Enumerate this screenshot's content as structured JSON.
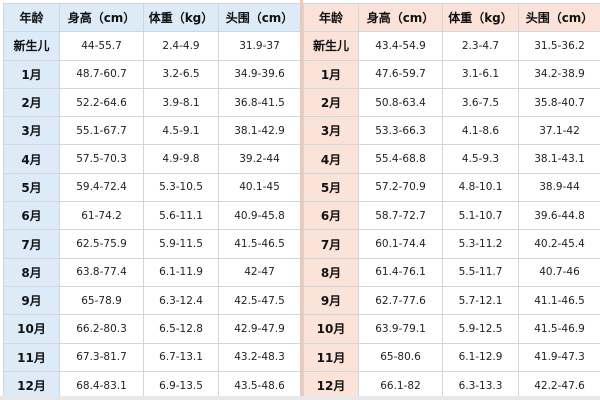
{
  "left_table": {
    "headers": [
      "年龄",
      "身高（cm）",
      "体重（kg）",
      "头围（cm）"
    ],
    "rows": [
      [
        "新生儿",
        "44-55.7",
        "2.4-4.9",
        "31.9-37"
      ],
      [
        "1月",
        "48.7-60.7",
        "3.2-6.5",
        "34.9-39.6"
      ],
      [
        "2月",
        "52.2-64.6",
        "3.9-8.1",
        "36.8-41.5"
      ],
      [
        "3月",
        "55.1-67.7",
        "4.5-9.1",
        "38.1-42.9"
      ],
      [
        "4月",
        "57.5-70.3",
        "4.9-9.8",
        "39.2-44"
      ],
      [
        "5月",
        "59.4-72.4",
        "5.3-10.5",
        "40.1-45"
      ],
      [
        "6月",
        "61-74.2",
        "5.6-11.1",
        "40.9-45.8"
      ],
      [
        "7月",
        "62.5-75.9",
        "5.9-11.5",
        "41.5-46.5"
      ],
      [
        "8月",
        "63.8-77.4",
        "6.1-11.9",
        "42-47"
      ],
      [
        "9月",
        "65-78.9",
        "6.3-12.4",
        "42.5-47.5"
      ],
      [
        "10月",
        "66.2-80.3",
        "6.5-12.8",
        "42.9-47.9"
      ],
      [
        "11月",
        "67.3-81.7",
        "6.7-13.1",
        "43.2-48.3"
      ],
      [
        "12月",
        "68.4-83.1",
        "6.9-13.5",
        "43.5-48.6"
      ]
    ]
  },
  "right_table": {
    "headers": [
      "年龄",
      "身高（cm）",
      "体重（kg）",
      "头围（cm）"
    ],
    "rows": [
      [
        "新生儿",
        "43.4-54.9",
        "2.3-4.7",
        "31.5-36.2"
      ],
      [
        "1月",
        "47.6-59.7",
        "3.1-6.1",
        "34.2-38.9"
      ],
      [
        "2月",
        "50.8-63.4",
        "3.6-7.5",
        "35.8-40.7"
      ],
      [
        "3月",
        "53.3-66.3",
        "4.1-8.6",
        "37.1-42"
      ],
      [
        "4月",
        "55.4-68.8",
        "4.5-9.3",
        "38.1-43.1"
      ],
      [
        "5月",
        "57.2-70.9",
        "4.8-10.1",
        "38.9-44"
      ],
      [
        "6月",
        "58.7-72.7",
        "5.1-10.7",
        "39.6-44.8"
      ],
      [
        "7月",
        "60.1-74.4",
        "5.3-11.2",
        "40.2-45.4"
      ],
      [
        "8月",
        "61.4-76.1",
        "5.5-11.7",
        "40.7-46"
      ],
      [
        "9月",
        "62.7-77.6",
        "5.7-12.1",
        "41.1-46.5"
      ],
      [
        "10月",
        "63.9-79.1",
        "5.9-12.5",
        "41.5-46.9"
      ],
      [
        "11月",
        "65-80.6",
        "6.1-12.9",
        "41.9-47.3"
      ],
      [
        "12月",
        "66.1-82",
        "6.3-13.3",
        "42.2-47.6"
      ]
    ]
  },
  "colors": {
    "left_header_bg": "#dcebf7",
    "right_header_bg": "#fbe3d9",
    "divider": "#f3c7b6",
    "grid_line": "#cfd6dc"
  }
}
